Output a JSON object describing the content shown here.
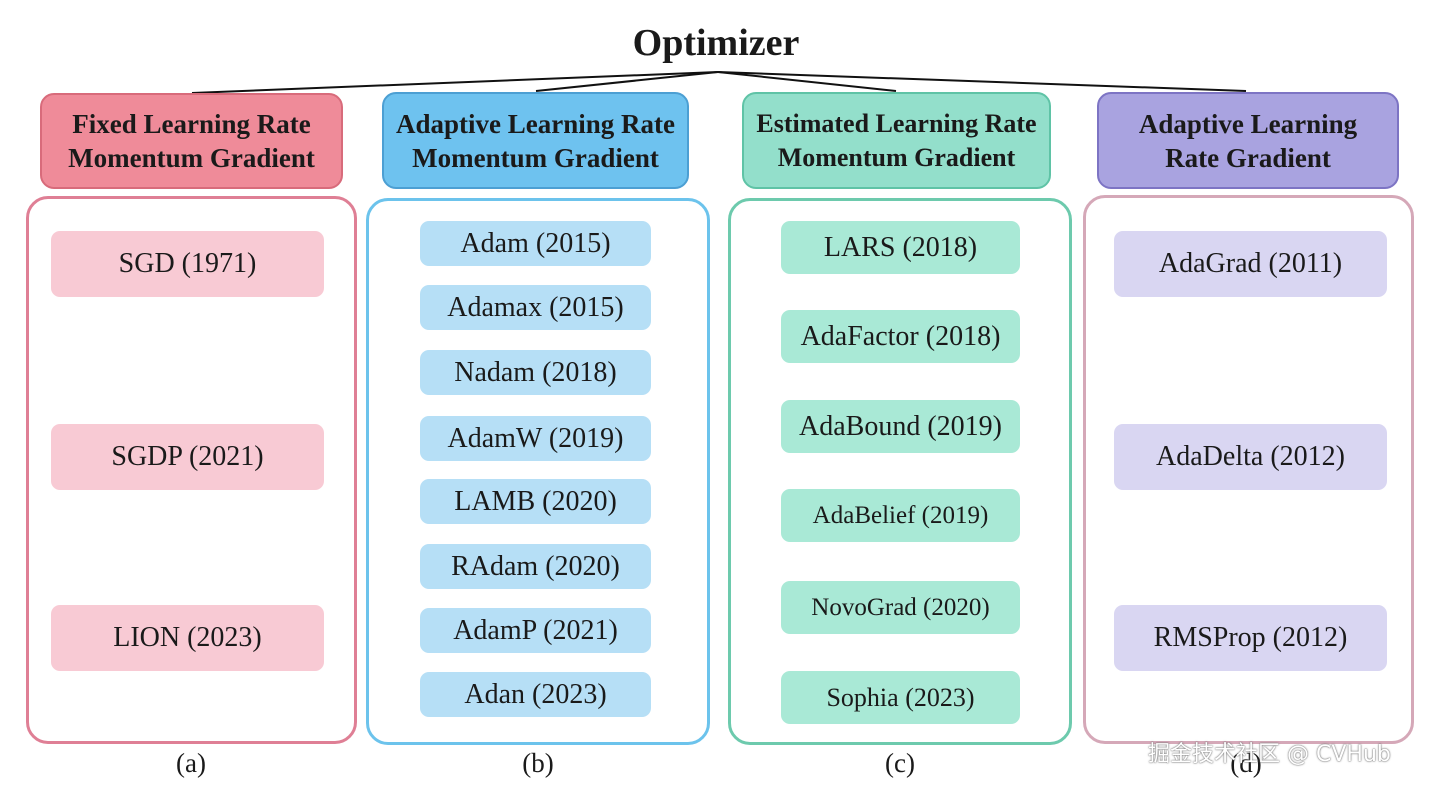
{
  "title": "Optimizer",
  "columns": [
    {
      "header": "Fixed Learning Rate Momentum Gradient",
      "header_lines": [
        "Fixed Learning Rate",
        "Momentum Gradient"
      ],
      "caption": "(a)",
      "colors": {
        "header_bg": "#ef8b99",
        "header_border": "#d86b7b",
        "panel_border": "#df7f95",
        "item_bg": "#f8cad4"
      },
      "items": [
        "SGD (1971)",
        "SGDP (2021)",
        "LION (2023)"
      ]
    },
    {
      "header": "Adaptive Learning Rate Momentum Gradient",
      "header_lines": [
        "Adaptive Learning Rate",
        "Momentum Gradient"
      ],
      "caption": "(b)",
      "colors": {
        "header_bg": "#6ec2ef",
        "header_border": "#4c9fd3",
        "panel_border": "#6cc3ec",
        "item_bg": "#b6dff6"
      },
      "items": [
        "Adam (2015)",
        "Adamax (2015)",
        "Nadam (2018)",
        "AdamW (2019)",
        "LAMB (2020)",
        "RAdam (2020)",
        "AdamP (2021)",
        "Adan (2023)"
      ]
    },
    {
      "header": "Estimated Learning Rate Momentum Gradient",
      "header_lines": [
        "Estimated Learning Rate",
        "Momentum Gradient"
      ],
      "caption": "(c)",
      "colors": {
        "header_bg": "#93dfcb",
        "header_border": "#5fc3a6",
        "panel_border": "#6dcaad",
        "item_bg": "#a9e9d6"
      },
      "items": [
        "LARS (2018)",
        "AdaFactor (2018)",
        "AdaBound (2019)",
        "AdaBelief (2019)",
        "NovoGrad (2020)",
        "Sophia (2023)"
      ]
    },
    {
      "header": "Adaptive Learning Rate Gradient",
      "header_lines": [
        "Adaptive Learning",
        "Rate Gradient"
      ],
      "caption": "(d)",
      "colors": {
        "header_bg": "#a9a3e0",
        "header_border": "#7d74c4",
        "panel_border": "#d5a8b8",
        "item_bg": "#d9d6f2"
      },
      "items": [
        "AdaGrad (2011)",
        "AdaDelta (2012)",
        "RMSProp (2012)"
      ]
    }
  ],
  "watermark": "掘金技术社区 @ CVHub"
}
